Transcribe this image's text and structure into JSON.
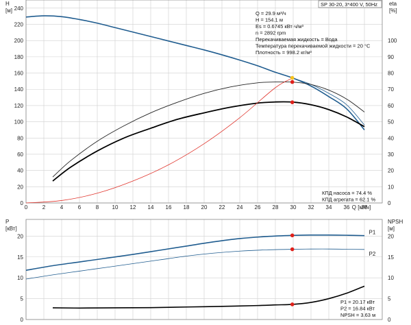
{
  "chart_data": [
    {
      "type": "line",
      "panel": "top",
      "xlabel": "Q [м³/ч]",
      "ylabel_left": "H",
      "ylabel_left_unit": "[м]",
      "ylabel_right": "eta",
      "ylabel_right_unit": "[%]",
      "title_box": "SP 30-20, 3*400 V, 50Hz",
      "xlim": [
        0,
        40
      ],
      "ylim_left": [
        0,
        250
      ],
      "ylim_right": [
        0,
        125
      ],
      "x_ticks": [
        0,
        2,
        4,
        6,
        8,
        10,
        12,
        14,
        16,
        18,
        20,
        22,
        24,
        26,
        28,
        30,
        32,
        34,
        36,
        38
      ],
      "y_ticks_left": [
        0,
        20,
        40,
        60,
        80,
        100,
        120,
        140,
        160,
        180,
        200,
        220,
        240
      ],
      "y_ticks_right": [
        0,
        10,
        20,
        30,
        40,
        50,
        60,
        70,
        80,
        90,
        100
      ],
      "grid": true,
      "info_lines": [
        "Q = 29.9 м³/ч",
        "H = 154.1 м",
        "Es = 0.6745 кВт·ч/м³",
        "n = 2892 rpm",
        "Перекачиваемая жидкость = Вода",
        "Температура перекачиваемой жидкости = 20 °C",
        "Плотность = 998.2 кг/м³"
      ],
      "efficiency_lines": [
        "КПД насоса = 74.4 %",
        "КПД агрегата = 62.1 %"
      ],
      "series": [
        {
          "role": "H",
          "axis": "left",
          "color": "#1f5c8f",
          "width": 1.6,
          "x": [
            0,
            2,
            4,
            6,
            8,
            10,
            12,
            14,
            16,
            18,
            20,
            22,
            24,
            26,
            28,
            29.9,
            32,
            34,
            36,
            38
          ],
          "y": [
            229,
            230.5,
            229.5,
            226,
            221.5,
            216,
            210.5,
            205,
            199.5,
            194,
            188.5,
            182.5,
            176,
            169,
            161,
            154.1,
            144,
            131,
            116,
            90
          ]
        },
        {
          "role": "H (thin)",
          "axis": "left",
          "color": "#1f5c8f",
          "width": 0.8,
          "x": [
            26,
            28,
            29.9,
            32,
            34,
            36,
            38
          ],
          "y": [
            169,
            161,
            154.1,
            146,
            135,
            121,
            96
          ]
        },
        {
          "role": "eta pump",
          "axis": "right",
          "color": "#222222",
          "width": 0.9,
          "x": [
            3,
            5,
            8,
            11,
            14,
            17,
            20,
            23,
            26,
            28,
            30,
            32,
            34,
            36,
            38
          ],
          "y": [
            16,
            26,
            38,
            47.5,
            55.5,
            62,
            67.5,
            71.5,
            74,
            74.5,
            74.4,
            73,
            69.5,
            64,
            56
          ]
        },
        {
          "role": "eta aggregate",
          "axis": "right",
          "color": "#000000",
          "width": 1.8,
          "x": [
            3,
            5,
            8,
            11,
            14,
            17,
            20,
            23,
            26,
            28,
            30,
            32,
            34,
            36,
            38
          ],
          "y": [
            13.5,
            22,
            32,
            40,
            46,
            51.5,
            55.5,
            59,
            61.5,
            62.2,
            62.1,
            60.5,
            57.5,
            53,
            47
          ]
        },
        {
          "role": "system curve",
          "axis": "left",
          "color": "#e0342c",
          "width": 0.8,
          "x": [
            0,
            4,
            8,
            12,
            16,
            20,
            24,
            28,
            30
          ],
          "y": [
            0,
            3,
            12,
            27,
            47,
            73,
            105,
            142,
            154.1
          ]
        }
      ],
      "markers": [
        {
          "axis": "left",
          "x": 29.9,
          "y": 154.1,
          "color": "#f7c21d"
        },
        {
          "axis": "left",
          "x": 29.9,
          "y": 149,
          "color": "#e0201a"
        },
        {
          "axis": "left",
          "x": 29.9,
          "y": 124,
          "color": "#e0201a"
        }
      ]
    },
    {
      "type": "line",
      "panel": "bottom",
      "ylabel_left": "P",
      "ylabel_left_unit": "[кВт]",
      "ylabel_right": "NPSH",
      "ylabel_right_unit": "[м]",
      "xlim": [
        0,
        40
      ],
      "ylim_left": [
        0,
        24
      ],
      "ylim_right": [
        0,
        24
      ],
      "y_ticks_left": [
        0,
        5,
        10,
        15,
        20
      ],
      "y_ticks_right": [
        0,
        5,
        10,
        15,
        20
      ],
      "grid": true,
      "readout_lines": [
        "P1 = 20.17 кВт",
        "P2 = 16.84 кВт",
        "NPSH = 3.63 м"
      ],
      "series": [
        {
          "name": "P1",
          "axis": "left",
          "color": "#1f5c8f",
          "width": 1.6,
          "x": [
            0,
            3,
            6,
            9,
            12,
            15,
            18,
            21,
            24,
            27,
            29.9,
            32,
            34,
            36,
            38
          ],
          "y": [
            11.8,
            12.9,
            13.8,
            14.7,
            15.6,
            16.6,
            17.6,
            18.6,
            19.4,
            19.9,
            20.17,
            20.25,
            20.25,
            20.2,
            20.1
          ]
        },
        {
          "name": "P2",
          "axis": "left",
          "color": "#1f5c8f",
          "width": 0.8,
          "x": [
            0,
            3,
            6,
            9,
            12,
            15,
            18,
            21,
            24,
            27,
            29.9,
            32,
            34,
            36,
            38
          ],
          "y": [
            9.7,
            10.7,
            11.6,
            12.5,
            13.4,
            14.3,
            15.2,
            15.9,
            16.4,
            16.7,
            16.84,
            16.9,
            16.9,
            16.85,
            16.8
          ]
        },
        {
          "name": "NPSH",
          "axis": "right",
          "color": "#000000",
          "width": 1.6,
          "x": [
            3,
            6,
            10,
            14,
            18,
            22,
            26,
            28,
            29.9,
            32,
            34,
            36,
            38
          ],
          "y": [
            2.8,
            2.75,
            2.8,
            2.85,
            3.0,
            3.15,
            3.35,
            3.5,
            3.63,
            4.1,
            5.0,
            6.3,
            8.0
          ]
        }
      ],
      "markers": [
        {
          "axis": "left",
          "x": 29.9,
          "y": 20.17,
          "color": "#e0201a"
        },
        {
          "axis": "left",
          "x": 29.9,
          "y": 16.84,
          "color": "#e0201a"
        },
        {
          "axis": "right",
          "x": 29.9,
          "y": 3.63,
          "color": "#e0201a"
        }
      ]
    }
  ]
}
